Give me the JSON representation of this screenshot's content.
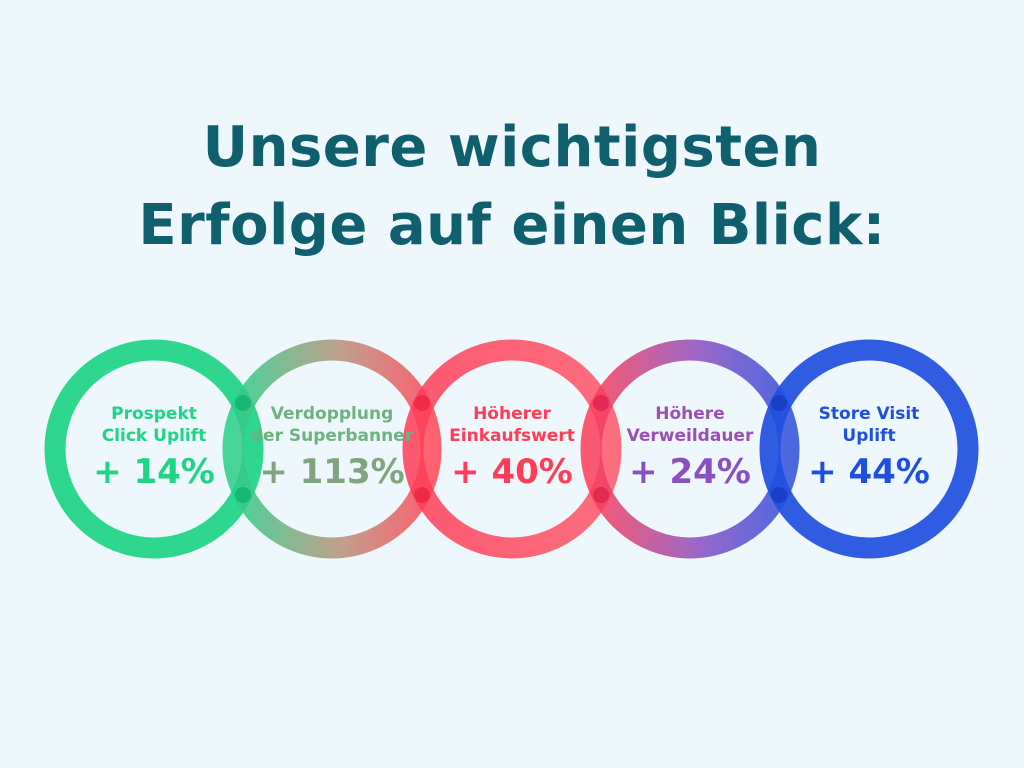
{
  "title": {
    "line1": "Unsere wichtigsten",
    "line2": "Erfolge auf einen Blick:"
  },
  "colors": {
    "background": "#eef7fb",
    "title": "#0f5f6e",
    "green": "#20d187",
    "red": "#ff3d57",
    "purple": "#8a4fc0",
    "blue": "#1f4fe0"
  },
  "metrics": [
    {
      "line1": "Prospekt",
      "line2": "Click Uplift",
      "value": "+ 14%",
      "color": "#20d187"
    },
    {
      "line1": "Verdopplung",
      "line2": "der Superbanner",
      "value": "+ 113%",
      "color": "#7fa47f"
    },
    {
      "line1": "Höherer",
      "line2": "Einkaufswert",
      "value": "+ 40%",
      "color": "#ff3d57"
    },
    {
      "line1": "Höhere",
      "line2": "Verweildauer",
      "value": "+ 24%",
      "color": "#8a4fc0"
    },
    {
      "line1": "Store Visit",
      "line2": "Uplift",
      "value": "+ 44%",
      "color": "#1f4fe0"
    }
  ]
}
